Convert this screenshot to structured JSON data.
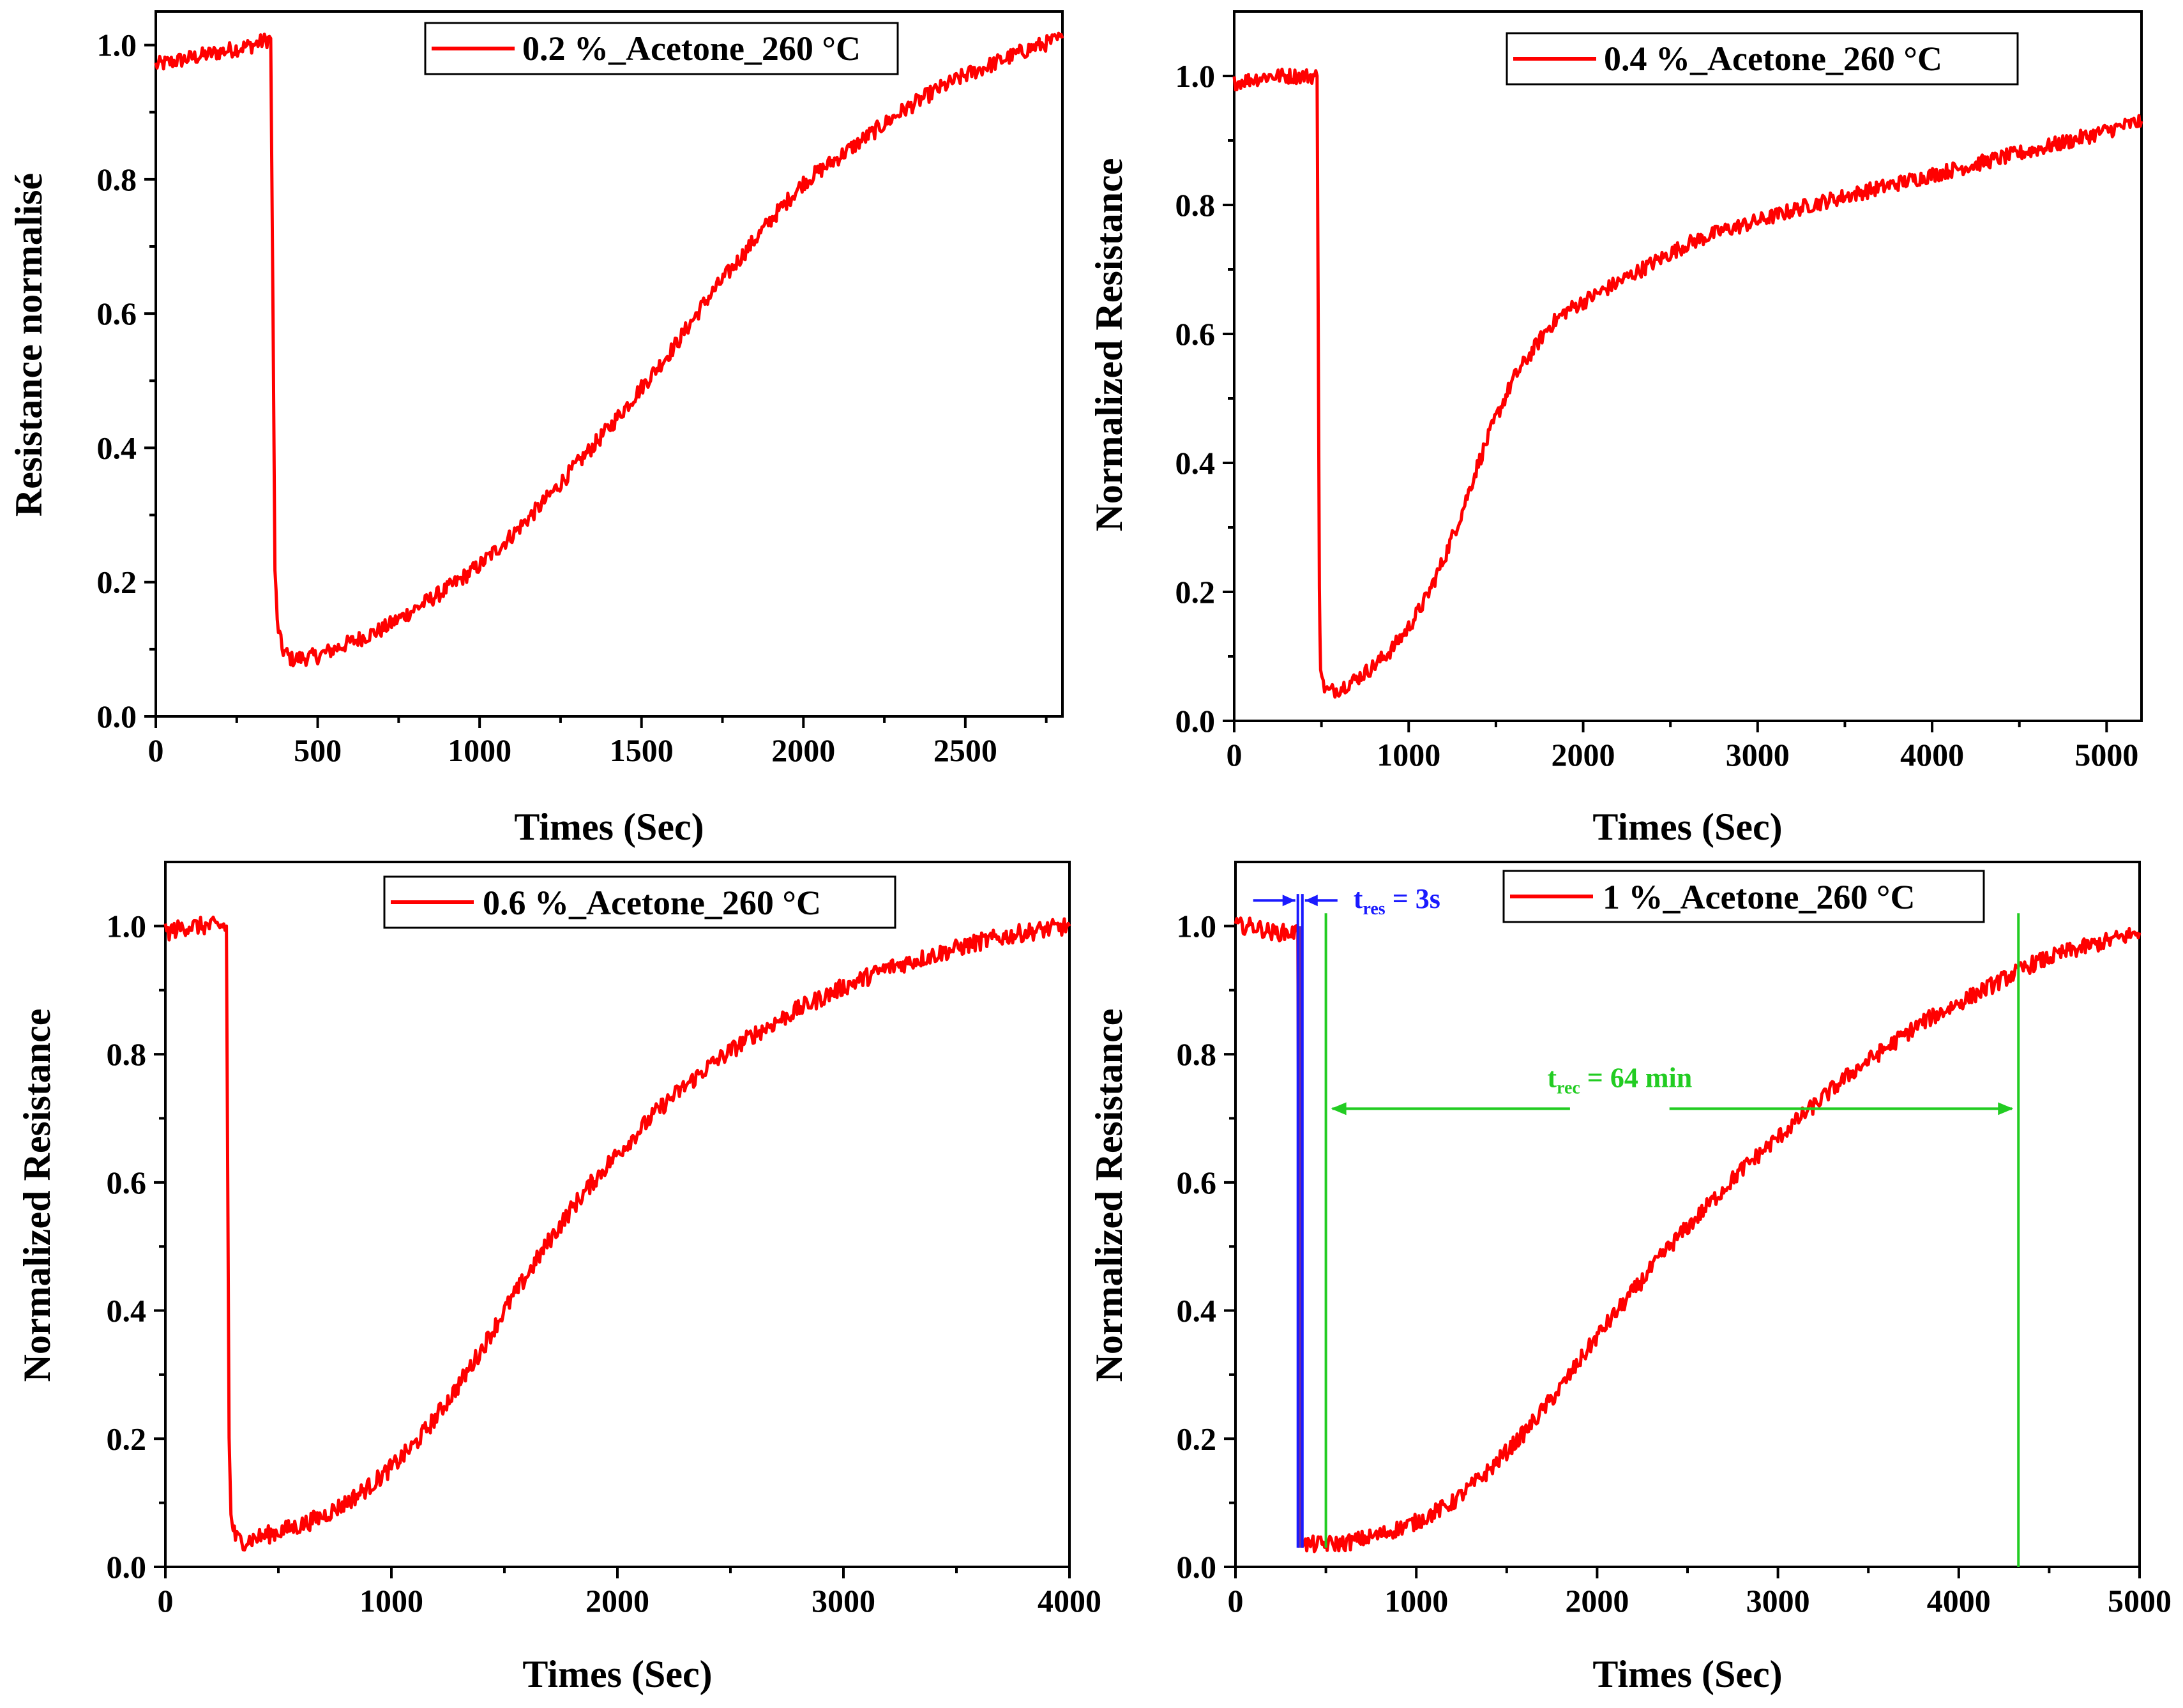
{
  "colors": {
    "series": "#ff0000",
    "response_marker": "#1a1aff",
    "response_marker_fill": "#6a2fa0",
    "recovery_marker": "#22cc22",
    "axis": "#000000"
  },
  "chart_data": [
    {
      "type": "line",
      "panel": "top-left",
      "legend_label": "0.2 %_Acetone_260 °C",
      "legend_position": "top-center",
      "xlabel": "Times (Sec)",
      "ylabel": "Resistance normalisé",
      "xlim": [
        0,
        2800
      ],
      "ylim": [
        0,
        1.05
      ],
      "x_ticks": [
        0,
        500,
        1000,
        1500,
        2000,
        2500
      ],
      "x_tick_labels": [
        "0",
        "500",
        "1000",
        "1500",
        "2000",
        "2500"
      ],
      "y_ticks": [
        0,
        0.2,
        0.4,
        0.6,
        0.8,
        1.0
      ],
      "y_tick_labels": [
        "0.0",
        "0.2",
        "0.4",
        "0.6",
        "0.8",
        "1.0"
      ],
      "x_minor_step": 250,
      "y_minor_step": 0.1,
      "noise": 0.012,
      "series": [
        {
          "name": "0.2 %_Acetone_260 °C",
          "x": [
            0,
            100,
            200,
            300,
            355,
            362,
            368,
            375,
            390,
            420,
            500,
            600,
            700,
            800,
            900,
            1000,
            1100,
            1200,
            1300,
            1400,
            1500,
            1600,
            1700,
            1800,
            1900,
            2000,
            2100,
            2200,
            2300,
            2400,
            2500,
            2600,
            2700,
            2800
          ],
          "y": [
            0.97,
            0.98,
            0.99,
            1.0,
            1.01,
            0.6,
            0.22,
            0.14,
            0.1,
            0.085,
            0.09,
            0.11,
            0.13,
            0.16,
            0.19,
            0.225,
            0.27,
            0.32,
            0.375,
            0.43,
            0.49,
            0.55,
            0.62,
            0.68,
            0.74,
            0.795,
            0.83,
            0.865,
            0.9,
            0.93,
            0.955,
            0.975,
            0.995,
            1.01
          ]
        }
      ]
    },
    {
      "type": "line",
      "panel": "top-right",
      "legend_label": "0.4 %_Acetone_260 °C",
      "legend_position": "top-center",
      "xlabel": "Times (Sec)",
      "ylabel": "Normalized Resistance",
      "xlim": [
        0,
        5200
      ],
      "ylim": [
        0,
        1.1
      ],
      "x_ticks": [
        0,
        1000,
        2000,
        3000,
        4000,
        5000
      ],
      "x_tick_labels": [
        "0",
        "1000",
        "2000",
        "3000",
        "4000",
        "5000"
      ],
      "y_ticks": [
        0,
        0.2,
        0.4,
        0.6,
        0.8,
        1.0
      ],
      "y_tick_labels": [
        "0.0",
        "0.2",
        "0.4",
        "0.6",
        "0.8",
        "1.0"
      ],
      "x_minor_step": 500,
      "y_minor_step": 0.1,
      "noise": 0.012,
      "series": [
        {
          "name": "0.4 %_Acetone_260 °C",
          "x": [
            0,
            200,
            400,
            475,
            482,
            488,
            495,
            510,
            540,
            600,
            700,
            800,
            900,
            1000,
            1100,
            1200,
            1300,
            1400,
            1500,
            1600,
            1700,
            1800,
            1900,
            2000,
            2200,
            2400,
            2600,
            2800,
            3000,
            3300,
            3600,
            3900,
            4200,
            4500,
            4800,
            5200
          ],
          "y": [
            0.99,
            1.0,
            1.0,
            1.0,
            0.6,
            0.2,
            0.09,
            0.055,
            0.045,
            0.05,
            0.065,
            0.085,
            0.11,
            0.145,
            0.19,
            0.25,
            0.32,
            0.4,
            0.47,
            0.53,
            0.57,
            0.61,
            0.635,
            0.65,
            0.68,
            0.71,
            0.74,
            0.76,
            0.775,
            0.8,
            0.82,
            0.84,
            0.86,
            0.88,
            0.9,
            0.93
          ]
        }
      ]
    },
    {
      "type": "line",
      "panel": "bottom-left",
      "legend_label": "0.6 %_Acetone_260 °C",
      "legend_position": "top-center",
      "xlabel": "Times (Sec)",
      "ylabel": "Normalized Resistance",
      "xlim": [
        0,
        4000
      ],
      "ylim": [
        0,
        1.1
      ],
      "x_ticks": [
        0,
        1000,
        2000,
        3000,
        4000
      ],
      "x_tick_labels": [
        "0",
        "1000",
        "2000",
        "3000",
        "4000"
      ],
      "y_ticks": [
        0,
        0.2,
        0.4,
        0.6,
        0.8,
        1.0
      ],
      "y_tick_labels": [
        "0.0",
        "0.2",
        "0.4",
        "0.6",
        "0.8",
        "1.0"
      ],
      "x_minor_step": 500,
      "y_minor_step": 0.1,
      "noise": 0.014,
      "series": [
        {
          "name": "0.6 %_Acetone_260 °C",
          "x": [
            0,
            100,
            200,
            270,
            276,
            282,
            290,
            310,
            350,
            400,
            500,
            600,
            700,
            800,
            900,
            1000,
            1100,
            1200,
            1300,
            1400,
            1500,
            1600,
            1700,
            1800,
            1900,
            2000,
            2200,
            2400,
            2600,
            2800,
            3000,
            3200,
            3400,
            3600,
            3800,
            4000
          ],
          "y": [
            0.99,
            1.0,
            1.0,
            1.0,
            0.6,
            0.2,
            0.08,
            0.045,
            0.04,
            0.045,
            0.055,
            0.065,
            0.08,
            0.1,
            0.125,
            0.155,
            0.19,
            0.235,
            0.285,
            0.34,
            0.4,
            0.455,
            0.51,
            0.56,
            0.605,
            0.645,
            0.72,
            0.78,
            0.83,
            0.87,
            0.905,
            0.935,
            0.955,
            0.975,
            0.99,
            1.0
          ]
        }
      ]
    },
    {
      "type": "line",
      "panel": "bottom-right",
      "legend_label": "1 %_Acetone_260 °C",
      "legend_position": "top-center",
      "xlabel": "Times (Sec)",
      "ylabel": "Normalized Resistance",
      "xlim": [
        0,
        5000
      ],
      "ylim": [
        0,
        1.1
      ],
      "x_ticks": [
        0,
        1000,
        2000,
        3000,
        4000,
        5000
      ],
      "x_tick_labels": [
        "0",
        "1000",
        "2000",
        "3000",
        "4000",
        "5000"
      ],
      "y_ticks": [
        0,
        0.2,
        0.4,
        0.6,
        0.8,
        1.0
      ],
      "y_tick_labels": [
        "0.0",
        "0.2",
        "0.4",
        "0.6",
        "0.8",
        "1.0"
      ],
      "x_minor_step": 500,
      "y_minor_step": 0.1,
      "noise": 0.013,
      "series": [
        {
          "name": "1 %_Acetone_260 °C",
          "x": [
            0,
            100,
            200,
            300,
            345,
            350,
            356,
            365,
            380,
            450,
            600,
            800,
            1000,
            1200,
            1400,
            1600,
            1800,
            2000,
            2200,
            2400,
            2600,
            2800,
            3000,
            3200,
            3400,
            3600,
            3800,
            4000,
            4200,
            4400,
            4600,
            4800,
            5000
          ],
          "y": [
            1.0,
            1.0,
            0.99,
            0.99,
            0.99,
            0.6,
            0.2,
            0.05,
            0.035,
            0.035,
            0.037,
            0.05,
            0.07,
            0.1,
            0.15,
            0.21,
            0.28,
            0.36,
            0.43,
            0.5,
            0.56,
            0.62,
            0.67,
            0.72,
            0.77,
            0.81,
            0.85,
            0.88,
            0.91,
            0.94,
            0.96,
            0.975,
            0.99
          ]
        }
      ],
      "annotations": {
        "response": {
          "label_main": "t",
          "label_sub": "res",
          "label_rest": " = 3s",
          "x_start": 345,
          "x_end": 370
        },
        "recovery": {
          "label_main": "t",
          "label_sub": "rec",
          "label_rest": " = 64 min",
          "x_start": 500,
          "x_end": 4330,
          "arrow_y": 0.715,
          "line_top": 1.02
        }
      }
    }
  ]
}
